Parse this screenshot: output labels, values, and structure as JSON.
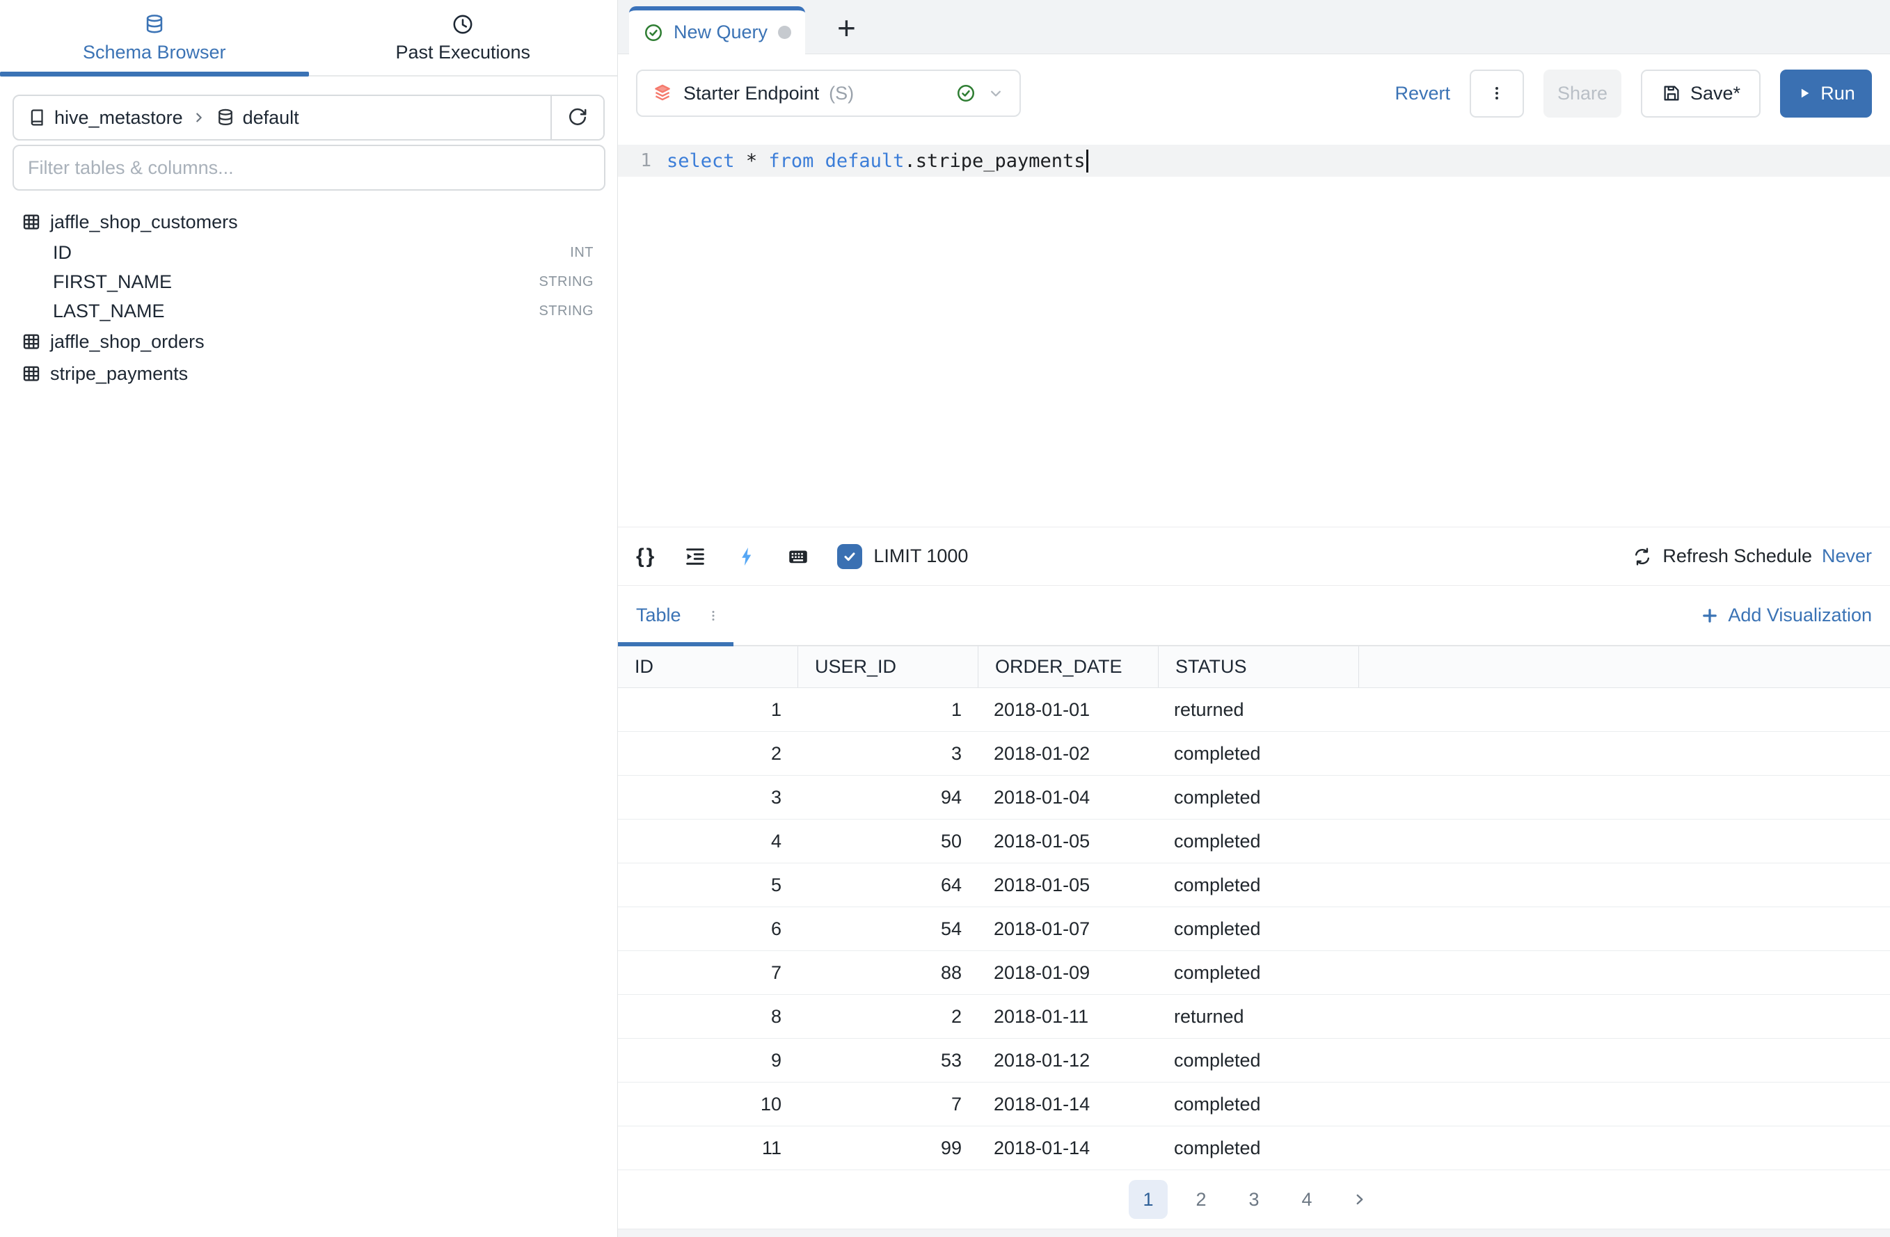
{
  "sidebar": {
    "tabs": [
      {
        "label": "Schema Browser",
        "icon": "database-icon",
        "active": true
      },
      {
        "label": "Past Executions",
        "icon": "history-icon",
        "active": false
      }
    ],
    "breadcrumb": {
      "catalog": "hive_metastore",
      "schema": "default"
    },
    "filter_placeholder": "Filter tables & columns...",
    "tables": [
      {
        "name": "jaffle_shop_customers",
        "columns": [
          {
            "name": "ID",
            "type": "INT"
          },
          {
            "name": "FIRST_NAME",
            "type": "STRING"
          },
          {
            "name": "LAST_NAME",
            "type": "STRING"
          }
        ]
      },
      {
        "name": "jaffle_shop_orders",
        "columns": []
      },
      {
        "name": "stripe_payments",
        "columns": []
      }
    ]
  },
  "editor_tabs": {
    "active_label": "New Query",
    "plus": "+"
  },
  "endpoint": {
    "name": "Starter Endpoint",
    "badge": "(S)"
  },
  "actions": {
    "revert": "Revert",
    "share": "Share",
    "save": "Save*",
    "run": "Run"
  },
  "editor": {
    "line_number": "1",
    "sql_text": "select * from default.stripe_payments",
    "tokens": [
      {
        "text": "select",
        "type": "kw"
      },
      {
        "text": " ",
        "type": "pl"
      },
      {
        "text": "*",
        "type": "pl"
      },
      {
        "text": " ",
        "type": "pl"
      },
      {
        "text": "from",
        "type": "kw"
      },
      {
        "text": " ",
        "type": "pl"
      },
      {
        "text": "default",
        "type": "kw"
      },
      {
        "text": ".stripe_payments",
        "type": "pl"
      }
    ]
  },
  "toolbar": {
    "braces": "{}",
    "limit_checked": true,
    "limit_label": "LIMIT 1000",
    "refresh_label": "Refresh Schedule",
    "refresh_value": "Never"
  },
  "results": {
    "tab_label": "Table",
    "add_viz_label": "Add Visualization",
    "columns": [
      "ID",
      "USER_ID",
      "ORDER_DATE",
      "STATUS"
    ],
    "column_align": [
      "right",
      "right",
      "left",
      "left"
    ],
    "rows": [
      [
        "1",
        "1",
        "2018-01-01",
        "returned"
      ],
      [
        "2",
        "3",
        "2018-01-02",
        "completed"
      ],
      [
        "3",
        "94",
        "2018-01-04",
        "completed"
      ],
      [
        "4",
        "50",
        "2018-01-05",
        "completed"
      ],
      [
        "5",
        "64",
        "2018-01-05",
        "completed"
      ],
      [
        "6",
        "54",
        "2018-01-07",
        "completed"
      ],
      [
        "7",
        "88",
        "2018-01-09",
        "completed"
      ],
      [
        "8",
        "2",
        "2018-01-11",
        "returned"
      ],
      [
        "9",
        "53",
        "2018-01-12",
        "completed"
      ],
      [
        "10",
        "7",
        "2018-01-14",
        "completed"
      ],
      [
        "11",
        "99",
        "2018-01-14",
        "completed"
      ]
    ],
    "pagination": {
      "pages": [
        "1",
        "2",
        "3",
        "4"
      ],
      "active": "1",
      "next": ">"
    }
  },
  "colors": {
    "accent_blue": "#3b73b5",
    "run_blue": "#3a70b2",
    "keyword_blue": "#3b7dd8",
    "success_green": "#2e7d32",
    "endpoint_coral": "#f5796c",
    "bolt_blue": "#55a7f5"
  }
}
